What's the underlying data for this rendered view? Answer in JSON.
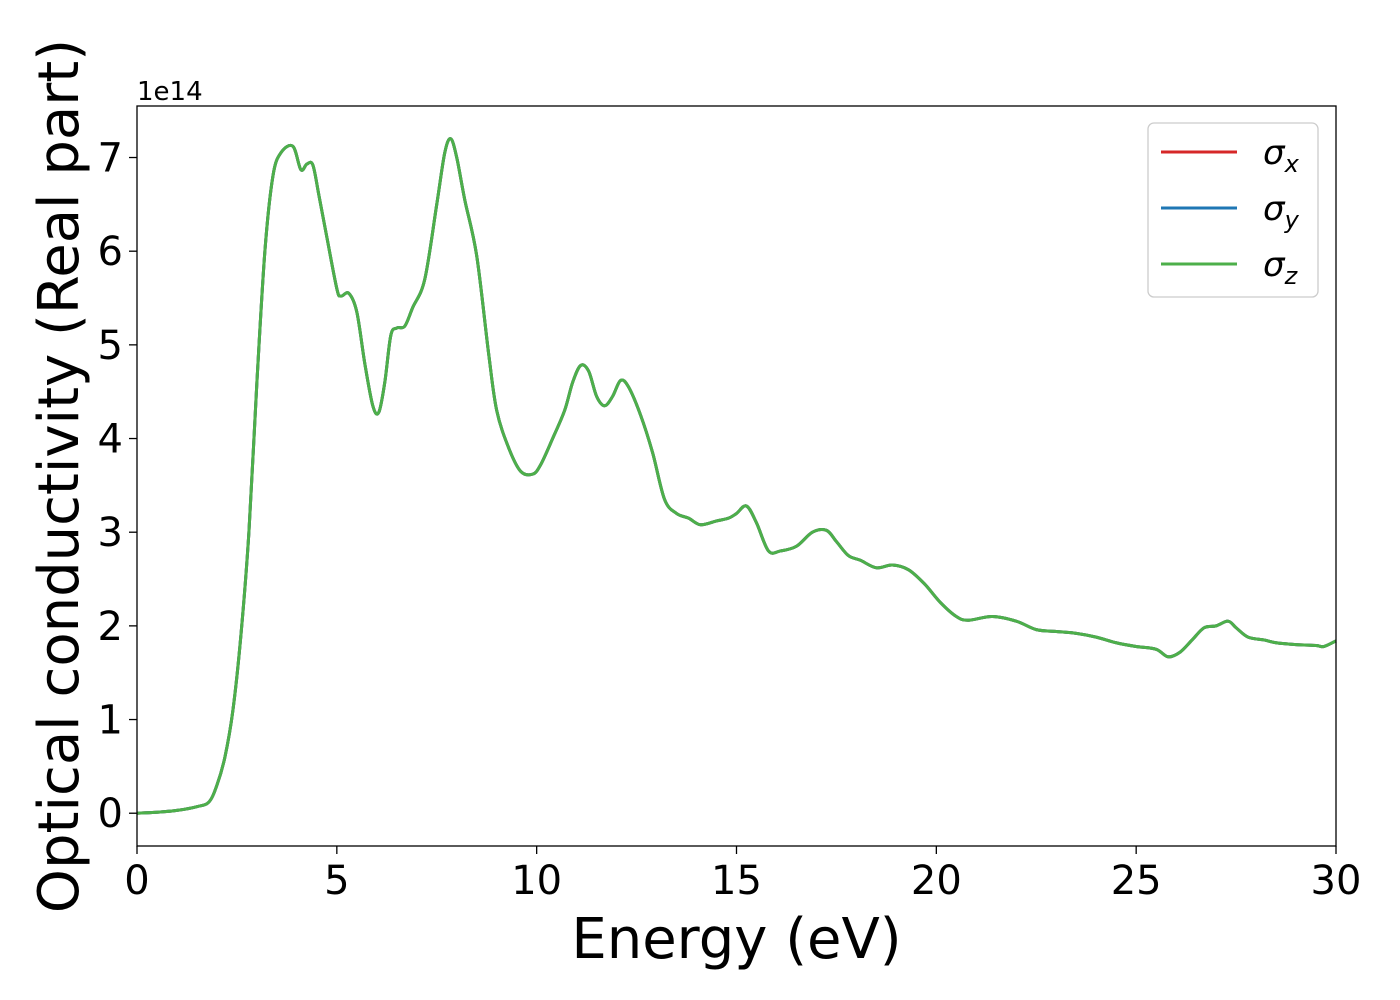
{
  "chart_data": {
    "type": "line",
    "xlabel": "Energy (eV)",
    "ylabel": "Optical conductivity (Real part)",
    "y_offset_label": "1e14",
    "xlim": [
      0,
      30
    ],
    "ylim": [
      -0.35,
      7.55
    ],
    "x_ticks": [
      0,
      5,
      10,
      15,
      20,
      25,
      30
    ],
    "y_ticks": [
      0,
      1,
      2,
      3,
      4,
      5,
      6,
      7
    ],
    "grid": false,
    "legend_position": "top-right",
    "series": [
      {
        "name": "σx",
        "symbol": "σ",
        "subscript": "x",
        "color": "#d62728"
      },
      {
        "name": "σy",
        "symbol": "σ",
        "subscript": "y",
        "color": "#1f77b4"
      },
      {
        "name": "σz",
        "symbol": "σ",
        "subscript": "z",
        "color": "#4daf4a"
      }
    ],
    "data": {
      "x": [
        0,
        0.5,
        1.0,
        1.5,
        1.8,
        2.0,
        2.2,
        2.4,
        2.6,
        2.8,
        3.0,
        3.2,
        3.4,
        3.6,
        3.9,
        4.1,
        4.25,
        4.4,
        4.55,
        4.75,
        5.0,
        5.1,
        5.3,
        5.5,
        5.7,
        5.9,
        6.05,
        6.2,
        6.35,
        6.5,
        6.7,
        6.9,
        7.2,
        7.5,
        7.7,
        7.85,
        8.0,
        8.2,
        8.5,
        8.8,
        9.0,
        9.3,
        9.6,
        9.9,
        10.1,
        10.4,
        10.7,
        10.9,
        11.1,
        11.3,
        11.5,
        11.7,
        11.9,
        12.1,
        12.3,
        12.6,
        12.9,
        13.2,
        13.5,
        13.8,
        14.1,
        14.5,
        14.8,
        15.0,
        15.25,
        15.5,
        15.8,
        16.1,
        16.5,
        16.9,
        17.25,
        17.5,
        17.8,
        18.1,
        18.5,
        18.9,
        19.3,
        19.7,
        20.1,
        20.5,
        20.8,
        21.4,
        22.0,
        22.5,
        23.0,
        23.5,
        24.0,
        24.5,
        25.0,
        25.5,
        25.8,
        26.1,
        26.4,
        26.7,
        27.0,
        27.3,
        27.5,
        27.8,
        28.2,
        28.5,
        29.0,
        29.5,
        29.7,
        30.0
      ],
      "y": [
        0,
        0.01,
        0.03,
        0.07,
        0.12,
        0.3,
        0.6,
        1.1,
        1.9,
        3.0,
        4.6,
        6.0,
        6.8,
        7.05,
        7.12,
        6.87,
        6.93,
        6.92,
        6.6,
        6.15,
        5.6,
        5.52,
        5.55,
        5.35,
        4.8,
        4.35,
        4.28,
        4.6,
        5.1,
        5.18,
        5.2,
        5.4,
        5.7,
        6.5,
        7.05,
        7.2,
        7.0,
        6.55,
        5.95,
        4.9,
        4.3,
        3.9,
        3.65,
        3.62,
        3.72,
        4.0,
        4.3,
        4.6,
        4.78,
        4.72,
        4.45,
        4.35,
        4.45,
        4.62,
        4.55,
        4.25,
        3.85,
        3.35,
        3.2,
        3.15,
        3.08,
        3.12,
        3.15,
        3.2,
        3.28,
        3.1,
        2.8,
        2.8,
        2.85,
        3.0,
        3.02,
        2.9,
        2.75,
        2.7,
        2.62,
        2.65,
        2.6,
        2.45,
        2.25,
        2.1,
        2.06,
        2.1,
        2.05,
        1.96,
        1.94,
        1.92,
        1.88,
        1.82,
        1.78,
        1.75,
        1.67,
        1.72,
        1.85,
        1.98,
        2.0,
        2.05,
        1.98,
        1.88,
        1.85,
        1.82,
        1.8,
        1.79,
        1.78,
        1.84
      ]
    }
  }
}
